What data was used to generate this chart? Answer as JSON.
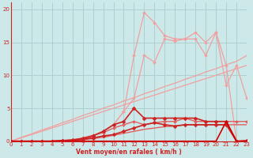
{
  "background_color": "#cce8e8",
  "grid_color": "#aacccc",
  "xlabel": "Vent moyen/en rafales ( km/h )",
  "ylabel_ticks": [
    0,
    5,
    10,
    15,
    20
  ],
  "ylim": [
    0,
    21
  ],
  "xlim": [
    0,
    23
  ],
  "x_values": [
    0,
    1,
    2,
    3,
    4,
    5,
    6,
    7,
    8,
    9,
    10,
    11,
    12,
    13,
    14,
    15,
    16,
    17,
    18,
    19,
    20,
    21,
    22,
    23
  ],
  "series": [
    {
      "y": [
        0,
        0.5,
        1.0,
        1.5,
        2.0,
        2.5,
        3.0,
        3.5,
        4.0,
        4.5,
        5.0,
        5.5,
        6.0,
        6.5,
        7.0,
        7.5,
        8.0,
        8.5,
        9.0,
        9.5,
        10.0,
        10.5,
        11.0,
        11.5
      ],
      "color": "#f0a0a0",
      "lw": 0.9,
      "marker": null,
      "ms": 0,
      "linestyle": "-",
      "zorder": 2
    },
    {
      "y": [
        0,
        0.6,
        1.1,
        1.7,
        2.2,
        2.8,
        3.3,
        3.9,
        4.4,
        5.0,
        5.5,
        6.1,
        6.6,
        7.2,
        7.7,
        8.3,
        8.8,
        9.4,
        9.9,
        10.5,
        11.0,
        11.6,
        12.1,
        13.0
      ],
      "color": "#f0a0a0",
      "lw": 0.9,
      "marker": null,
      "ms": 0,
      "linestyle": "-",
      "zorder": 2
    },
    {
      "y": [
        0,
        0,
        0,
        0,
        0,
        0,
        0.1,
        0.3,
        0.8,
        1.5,
        2.5,
        4.5,
        13.0,
        19.5,
        18.0,
        16.0,
        15.5,
        15.5,
        16.5,
        15.0,
        16.5,
        11.5,
        0.0,
        0.0
      ],
      "color": "#f0a0a0",
      "lw": 0.9,
      "marker": "D",
      "ms": 2.0,
      "linestyle": "-",
      "zorder": 3
    },
    {
      "y": [
        0,
        0,
        0,
        0,
        0,
        0,
        0.1,
        0.3,
        0.8,
        1.5,
        2.5,
        4.5,
        6.5,
        13.0,
        12.0,
        15.5,
        15.2,
        15.5,
        15.5,
        13.0,
        16.5,
        8.5,
        11.5,
        6.5
      ],
      "color": "#f0a0a0",
      "lw": 0.9,
      "marker": "D",
      "ms": 2.0,
      "linestyle": "-",
      "zorder": 3
    },
    {
      "y": [
        0,
        0,
        0,
        0,
        0,
        0.1,
        0.2,
        0.5,
        0.9,
        1.3,
        2.0,
        2.5,
        3.0,
        2.5,
        2.8,
        3.0,
        3.0,
        3.5,
        3.0,
        3.0,
        3.0,
        3.0,
        3.0,
        3.0
      ],
      "color": "#e06060",
      "lw": 1.0,
      "marker": "D",
      "ms": 2.0,
      "linestyle": "-",
      "zorder": 4
    },
    {
      "y": [
        0,
        0,
        0,
        0,
        0,
        0.05,
        0.1,
        0.2,
        0.4,
        0.6,
        0.9,
        1.2,
        1.5,
        1.8,
        2.0,
        2.2,
        2.3,
        2.5,
        2.5,
        2.5,
        2.5,
        2.5,
        2.5,
        2.5
      ],
      "color": "#e06060",
      "lw": 1.0,
      "marker": null,
      "ms": 0,
      "linestyle": "-",
      "zorder": 4
    },
    {
      "y": [
        0,
        0,
        0,
        0,
        0,
        0.1,
        0.2,
        0.4,
        0.8,
        1.5,
        2.5,
        3.0,
        5.0,
        3.5,
        3.5,
        3.5,
        3.5,
        3.5,
        3.5,
        3.0,
        3.0,
        3.0,
        0.0,
        0.1
      ],
      "color": "#cc2222",
      "lw": 1.2,
      "marker": "D",
      "ms": 2.5,
      "linestyle": "-",
      "zorder": 5
    },
    {
      "y": [
        0,
        0,
        0,
        0,
        0,
        0.1,
        0.1,
        0.3,
        0.5,
        0.8,
        1.0,
        1.5,
        2.0,
        2.5,
        2.8,
        2.5,
        2.3,
        2.5,
        2.5,
        2.5,
        2.5,
        2.5,
        0.0,
        0.0
      ],
      "color": "#cc2222",
      "lw": 1.2,
      "marker": "D",
      "ms": 2.5,
      "linestyle": "-",
      "zorder": 5
    },
    {
      "y": [
        0,
        0,
        0,
        0,
        0,
        0,
        0,
        0,
        0,
        0,
        0,
        0,
        0,
        0,
        0,
        0,
        0,
        0,
        0,
        0,
        0,
        3.0,
        0.0,
        0.0
      ],
      "color": "#cc0000",
      "lw": 1.2,
      "marker": null,
      "ms": 0,
      "linestyle": "-",
      "zorder": 5
    }
  ],
  "bottom_arrow_line": {
    "y": -0.55,
    "color": "#cc2222",
    "lw": 0.8
  }
}
